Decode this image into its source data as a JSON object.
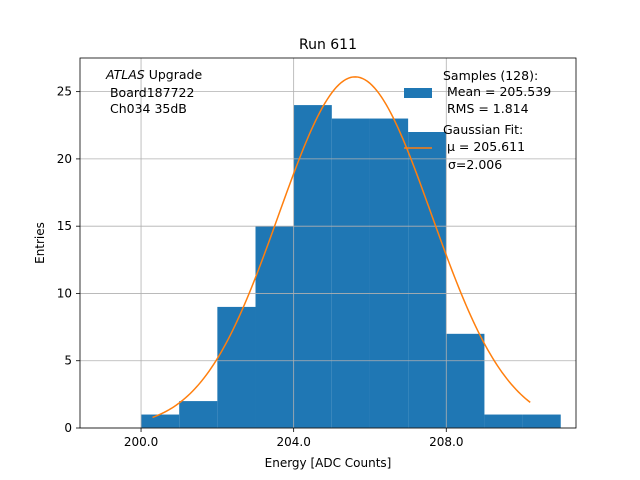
{
  "chart_data": {
    "type": "histogram",
    "title": "Run 611",
    "xlabel": "Energy [ADC Counts]",
    "ylabel": "Entries",
    "xlim": [
      198.4,
      211.4
    ],
    "ylim": [
      0,
      27.5
    ],
    "xticks": [
      200,
      204,
      208
    ],
    "xtick_labels": [
      "200.0",
      "204.0",
      "208.0"
    ],
    "yticks": [
      0,
      5,
      10,
      15,
      20,
      25
    ],
    "ytick_labels": [
      "0",
      "5",
      "10",
      "15",
      "20",
      "25"
    ],
    "grid": true,
    "bins": [
      {
        "lo": 200,
        "hi": 201,
        "count": 1
      },
      {
        "lo": 201,
        "hi": 202,
        "count": 2
      },
      {
        "lo": 202,
        "hi": 203,
        "count": 9
      },
      {
        "lo": 203,
        "hi": 204,
        "count": 15
      },
      {
        "lo": 204,
        "hi": 205,
        "count": 24
      },
      {
        "lo": 205,
        "hi": 206,
        "count": 23
      },
      {
        "lo": 206,
        "hi": 207,
        "count": 23
      },
      {
        "lo": 207,
        "hi": 208,
        "count": 22
      },
      {
        "lo": 208,
        "hi": 209,
        "count": 7
      },
      {
        "lo": 209,
        "hi": 210,
        "count": 1
      },
      {
        "lo": 210,
        "hi": 211,
        "count": 1
      }
    ],
    "fit": {
      "type": "gaussian",
      "amplitude": 26.1,
      "mu": 205.611,
      "sigma": 2.006,
      "x_range": [
        200.3,
        210.2
      ]
    },
    "annotation": {
      "line1_italic": "ATLAS",
      "line1_rest": " Upgrade",
      "line2": " Board187722",
      "line3": " Ch034 35dB"
    },
    "legend": {
      "placement": "top-right",
      "samples_title": "Samples (128):",
      "samples_mean": " Mean = 205.539",
      "samples_rms": " RMS = 1.814",
      "fit_title": "Gaussian Fit:",
      "fit_mu": " μ = 205.611",
      "fit_sigma": "σ=2.006"
    },
    "colors": {
      "bars": "#1f77b4",
      "fit": "#ff7f0e",
      "grid": "#b0b0b0",
      "axis": "#000000"
    }
  }
}
